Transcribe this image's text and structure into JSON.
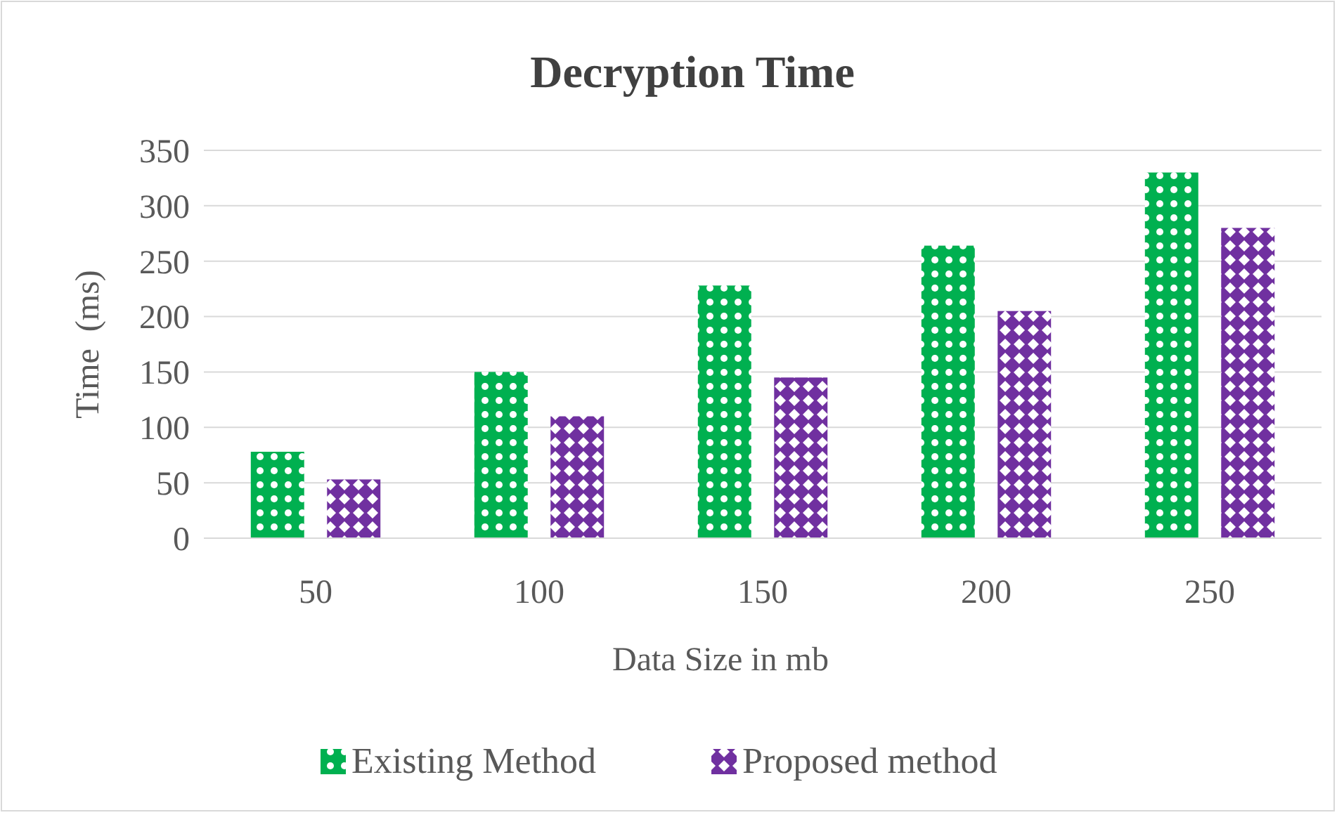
{
  "chart_data": {
    "type": "bar",
    "title": "Decryption Time",
    "xlabel": "Data Size in mb",
    "ylabel": "Time  (ms)",
    "categories": [
      "50",
      "100",
      "150",
      "200",
      "250"
    ],
    "series": [
      {
        "name": "Existing Method",
        "color": "#00b050",
        "values": [
          78,
          150,
          228,
          264,
          330
        ]
      },
      {
        "name": "Proposed method",
        "color": "#7030a0",
        "values": [
          53,
          110,
          145,
          205,
          280
        ]
      }
    ],
    "ylim": [
      0,
      350
    ],
    "yticks": [
      0,
      50,
      100,
      150,
      200,
      250,
      300,
      350
    ],
    "grid": "y",
    "legend": "bottom"
  }
}
